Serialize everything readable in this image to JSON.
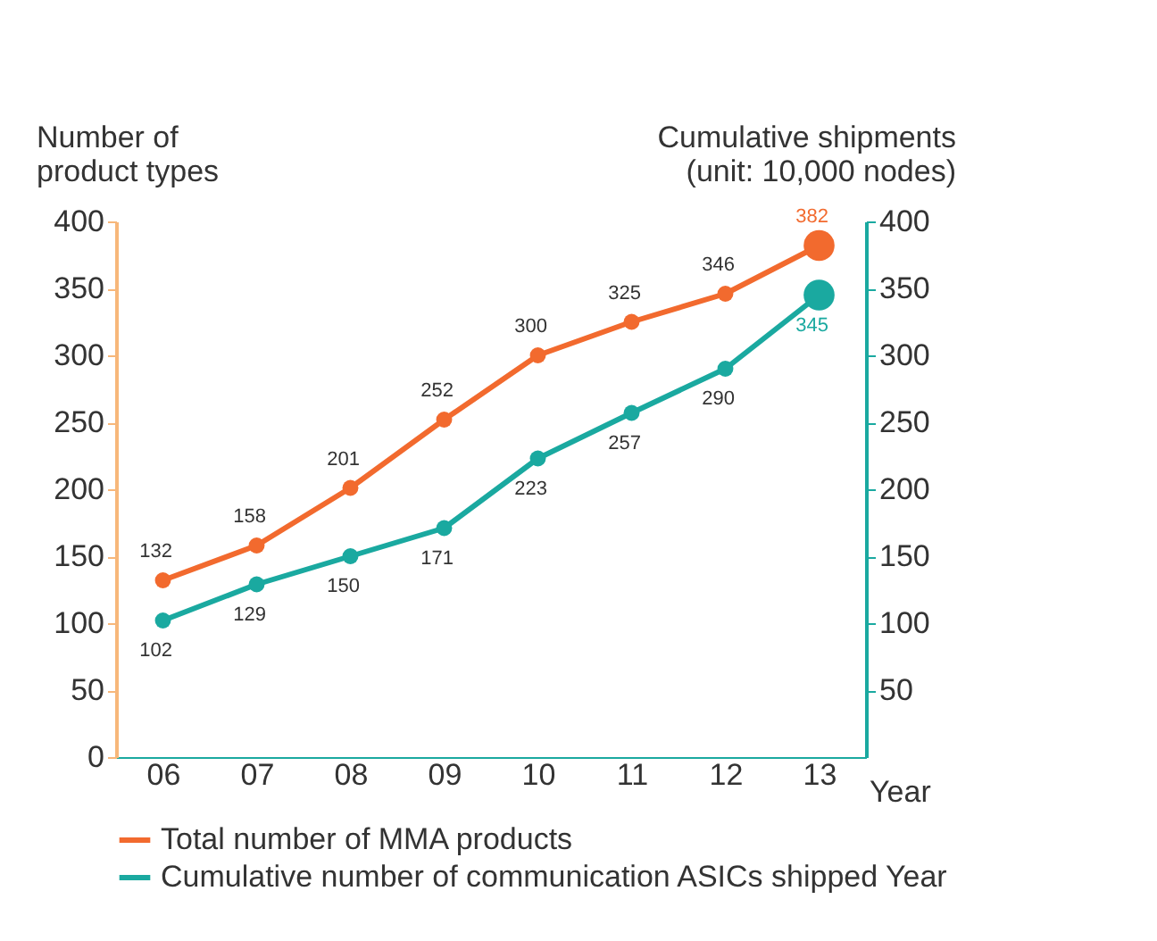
{
  "chart_data": {
    "type": "line",
    "ylabel": "Number of\nproduct types",
    "y2label": "Cumulative shipments\n(unit: 10,000 nodes)",
    "xlabel": "Year",
    "categories": [
      "06",
      "07",
      "08",
      "09",
      "10",
      "11",
      "12",
      "13"
    ],
    "series": [
      {
        "name": "Total number of MMA products",
        "color": "#f26a2e",
        "values": [
          132,
          158,
          201,
          252,
          300,
          325,
          346,
          382
        ]
      },
      {
        "name": "Cumulative number of communication ASICs shipped Year",
        "color": "#1aa9a0",
        "axis": "y2",
        "values": [
          102,
          129,
          150,
          171,
          223,
          257,
          290,
          345
        ]
      }
    ],
    "ylim": [
      0,
      400
    ],
    "yticks": [
      0,
      50,
      100,
      150,
      200,
      250,
      300,
      350,
      400
    ],
    "y2lim": [
      0,
      400
    ],
    "y2ticks": [
      50,
      100,
      150,
      200,
      250,
      300,
      350,
      400
    ],
    "data_labels": true,
    "marker": "circle",
    "grid": false,
    "legend": "bottom"
  }
}
